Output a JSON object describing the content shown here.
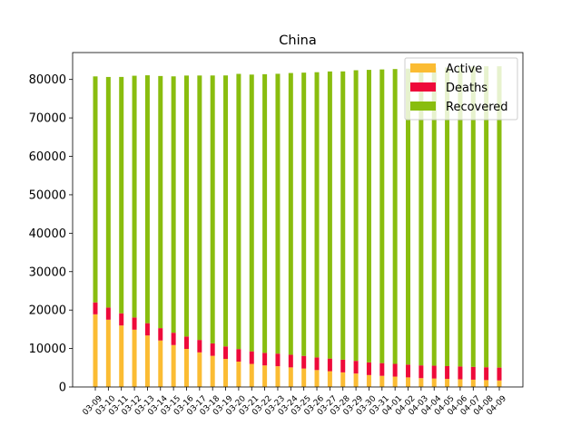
{
  "chart_data": {
    "type": "bar",
    "stacked": true,
    "title": "China",
    "xlabel": "",
    "ylabel": "",
    "ylim": [
      0,
      87000
    ],
    "yticks": [
      0,
      10000,
      20000,
      30000,
      40000,
      50000,
      60000,
      70000,
      80000
    ],
    "yticklabels": [
      "0",
      "10000",
      "20000",
      "30000",
      "40000",
      "50000",
      "60000",
      "70000",
      "80000"
    ],
    "grid": false,
    "legend_position": "top-right",
    "categories": [
      "03-09",
      "03-10",
      "03-11",
      "03-12",
      "03-13",
      "03-14",
      "03-15",
      "03-16",
      "03-17",
      "03-18",
      "03-19",
      "03-20",
      "03-21",
      "03-22",
      "03-23",
      "03-24",
      "03-25",
      "03-26",
      "03-27",
      "03-28",
      "03-29",
      "03-30",
      "03-31",
      "04-01",
      "04-02",
      "04-03",
      "04-04",
      "04-05",
      "04-06",
      "04-07",
      "04-08",
      "04-09"
    ],
    "series": [
      {
        "name": "Active",
        "color": "#fbbc33",
        "values": [
          18900,
          17500,
          16000,
          14900,
          13400,
          12100,
          10900,
          9900,
          9000,
          8100,
          7300,
          6600,
          6000,
          5600,
          5400,
          5100,
          4800,
          4400,
          4100,
          3800,
          3500,
          3100,
          2900,
          2700,
          2500,
          2300,
          2200,
          2100,
          2000,
          1900,
          1800,
          1700
        ]
      },
      {
        "name": "Deaths",
        "color": "#ee0a3a",
        "values": [
          3100,
          3150,
          3160,
          3170,
          3190,
          3200,
          3210,
          3220,
          3230,
          3240,
          3250,
          3260,
          3270,
          3270,
          3280,
          3280,
          3280,
          3290,
          3290,
          3300,
          3300,
          3300,
          3310,
          3310,
          3320,
          3320,
          3330,
          3330,
          3330,
          3330,
          3340,
          3340
        ]
      },
      {
        "name": "Recovered",
        "color": "#89bd0e",
        "values": [
          58800,
          60000,
          61500,
          62900,
          64500,
          65600,
          66700,
          67900,
          68800,
          69700,
          70500,
          71600,
          72000,
          72500,
          72800,
          73300,
          73700,
          74200,
          74700,
          75000,
          75600,
          76100,
          76400,
          76700,
          77000,
          77400,
          77600,
          77700,
          77900,
          78100,
          78300,
          78400
        ]
      }
    ],
    "legend": [
      "Active",
      "Deaths",
      "Recovered"
    ]
  }
}
